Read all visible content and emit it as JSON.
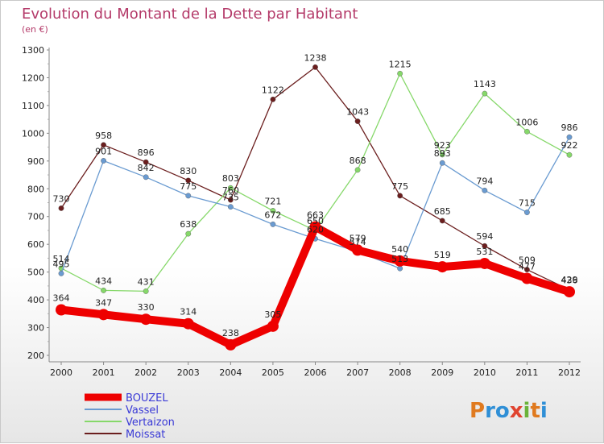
{
  "chart_data": {
    "type": "line",
    "title": "Evolution du Montant de la Dette par Habitant",
    "subtitle": "(en €)",
    "x": [
      "2000",
      "2001",
      "2002",
      "2003",
      "2004",
      "2005",
      "2006",
      "2007",
      "2008",
      "2009",
      "2010",
      "2011",
      "2012"
    ],
    "ylim": [
      200,
      1300
    ],
    "yticks": [
      200,
      300,
      400,
      500,
      600,
      700,
      800,
      900,
      1000,
      1100,
      1200,
      1300
    ],
    "grid": false,
    "legend_position": "bottom-left",
    "series": [
      {
        "name": "BOUZEL",
        "color": "#ee0000",
        "values": [
          364,
          347,
          330,
          314,
          238,
          305,
          663,
          579,
          540,
          519,
          531,
          477,
          429
        ]
      },
      {
        "name": "Vassel",
        "color": "#6a9bd1",
        "values": [
          495,
          901,
          842,
          775,
          735,
          672,
          620,
          574,
          513,
          893,
          794,
          715,
          986
        ]
      },
      {
        "name": "Vertaizon",
        "color": "#86d86a",
        "values": [
          514,
          434,
          431,
          638,
          803,
          721,
          650,
          868,
          1215,
          923,
          1143,
          1006,
          922
        ]
      },
      {
        "name": "Moissat",
        "color": "#6b1e1e",
        "values": [
          730,
          958,
          896,
          830,
          760,
          1122,
          1238,
          1043,
          775,
          685,
          594,
          509,
          436
        ]
      }
    ]
  },
  "logo": {
    "text": "Proxiti"
  }
}
